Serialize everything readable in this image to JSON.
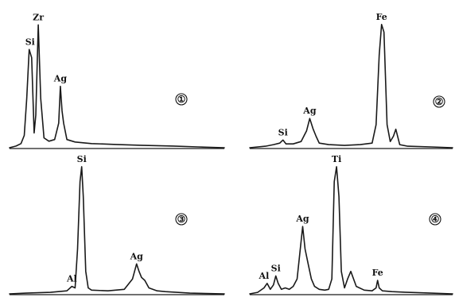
{
  "chart_data": [
    {
      "type": "line",
      "panel_label": "①",
      "annotations": [
        {
          "text": "Si",
          "x": 25
        },
        {
          "text": "Zr",
          "x": 35
        },
        {
          "text": "Ag",
          "x": 62
        }
      ],
      "x": [
        0,
        8,
        14,
        18,
        21,
        24,
        27,
        30,
        32,
        35,
        38,
        42,
        48,
        55,
        60,
        62,
        64,
        66,
        70,
        80,
        100,
        130,
        160,
        200,
        230,
        262
      ],
      "y": [
        0,
        2,
        5,
        15,
        60,
        120,
        110,
        18,
        40,
        150,
        60,
        12,
        8,
        10,
        30,
        75,
        45,
        30,
        10,
        7,
        5,
        4,
        3,
        2,
        1,
        0
      ]
    },
    {
      "type": "line",
      "panel_label": "②",
      "annotations": [
        {
          "text": "Si",
          "x": 42
        },
        {
          "text": "Ag",
          "x": 76
        },
        {
          "text": "Fe",
          "x": 167
        }
      ],
      "x": [
        0,
        20,
        30,
        38,
        42,
        46,
        55,
        65,
        72,
        76,
        80,
        84,
        88,
        100,
        120,
        140,
        155,
        160,
        164,
        167,
        170,
        174,
        178,
        182,
        185,
        190,
        200,
        230,
        257
      ],
      "y": [
        0,
        2,
        4,
        6,
        10,
        5,
        5,
        8,
        22,
        38,
        25,
        15,
        6,
        4,
        3,
        4,
        6,
        30,
        120,
        160,
        150,
        30,
        8,
        15,
        24,
        4,
        2,
        1,
        0
      ]
    },
    {
      "type": "line",
      "panel_label": "③",
      "annotations": [
        {
          "text": "Al",
          "x": 76
        },
        {
          "text": "Si",
          "x": 88
        },
        {
          "text": "Ag",
          "x": 155
        }
      ],
      "x": [
        0,
        20,
        50,
        70,
        76,
        80,
        83,
        86,
        88,
        90,
        93,
        96,
        100,
        120,
        140,
        150,
        155,
        158,
        161,
        165,
        170,
        180,
        190,
        220,
        262
      ],
      "y": [
        0,
        1,
        2,
        4,
        10,
        8,
        60,
        150,
        170,
        130,
        30,
        8,
        5,
        4,
        6,
        20,
        40,
        30,
        22,
        18,
        8,
        4,
        3,
        1,
        0
      ]
    },
    {
      "type": "line",
      "panel_label": "④",
      "annotations": [
        {
          "text": "Al",
          "x": 18
        },
        {
          "text": "Si",
          "x": 33
        },
        {
          "text": "Ag",
          "x": 67
        },
        {
          "text": "Ti",
          "x": 110
        },
        {
          "text": "Fe",
          "x": 162
        }
      ],
      "x": [
        0,
        10,
        18,
        22,
        26,
        30,
        33,
        36,
        40,
        45,
        50,
        55,
        60,
        64,
        67,
        70,
        74,
        78,
        82,
        88,
        95,
        100,
        104,
        107,
        110,
        113,
        116,
        120,
        124,
        128,
        135,
        145,
        155,
        160,
        162,
        164,
        168,
        180,
        200,
        230,
        257
      ],
      "y": [
        0,
        2,
        8,
        14,
        6,
        12,
        24,
        14,
        6,
        8,
        6,
        10,
        20,
        60,
        90,
        60,
        40,
        20,
        10,
        6,
        5,
        6,
        20,
        150,
        170,
        130,
        30,
        8,
        20,
        30,
        10,
        5,
        4,
        8,
        18,
        8,
        4,
        3,
        2,
        1,
        0
      ]
    }
  ]
}
